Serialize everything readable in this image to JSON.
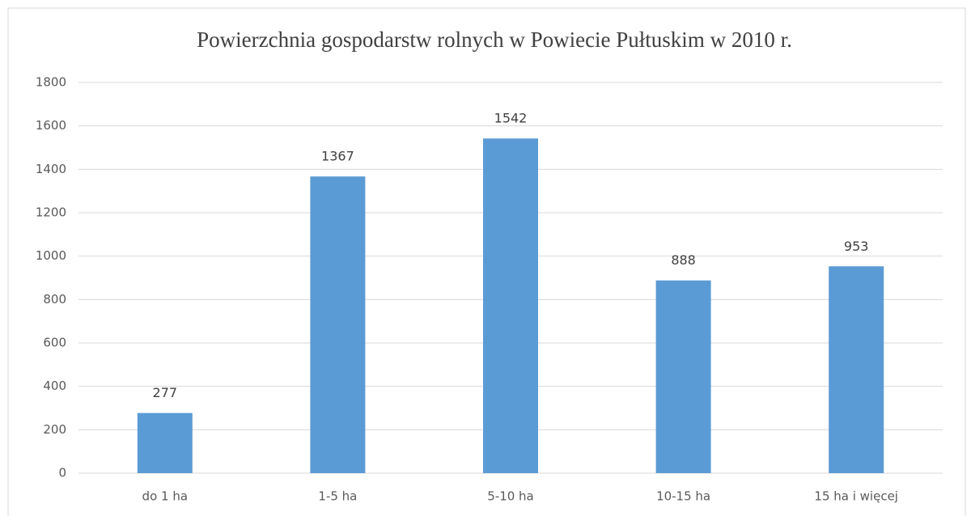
{
  "chart_data": {
    "type": "bar",
    "title": "Powierzchnia gospodarstw rolnych w Powiecie Pułtuskim w 2010 r.",
    "categories": [
      "do 1 ha",
      "1-5 ha",
      "5-10 ha",
      "10-15 ha",
      "15 ha i więcej"
    ],
    "values": [
      277,
      1367,
      1542,
      888,
      953
    ],
    "color": "#5b9bd5",
    "ylim": [
      0,
      1800
    ],
    "yticks": [
      0,
      200,
      400,
      600,
      800,
      1000,
      1200,
      1400,
      1600,
      1800
    ],
    "grid": true,
    "data_labels": true
  }
}
